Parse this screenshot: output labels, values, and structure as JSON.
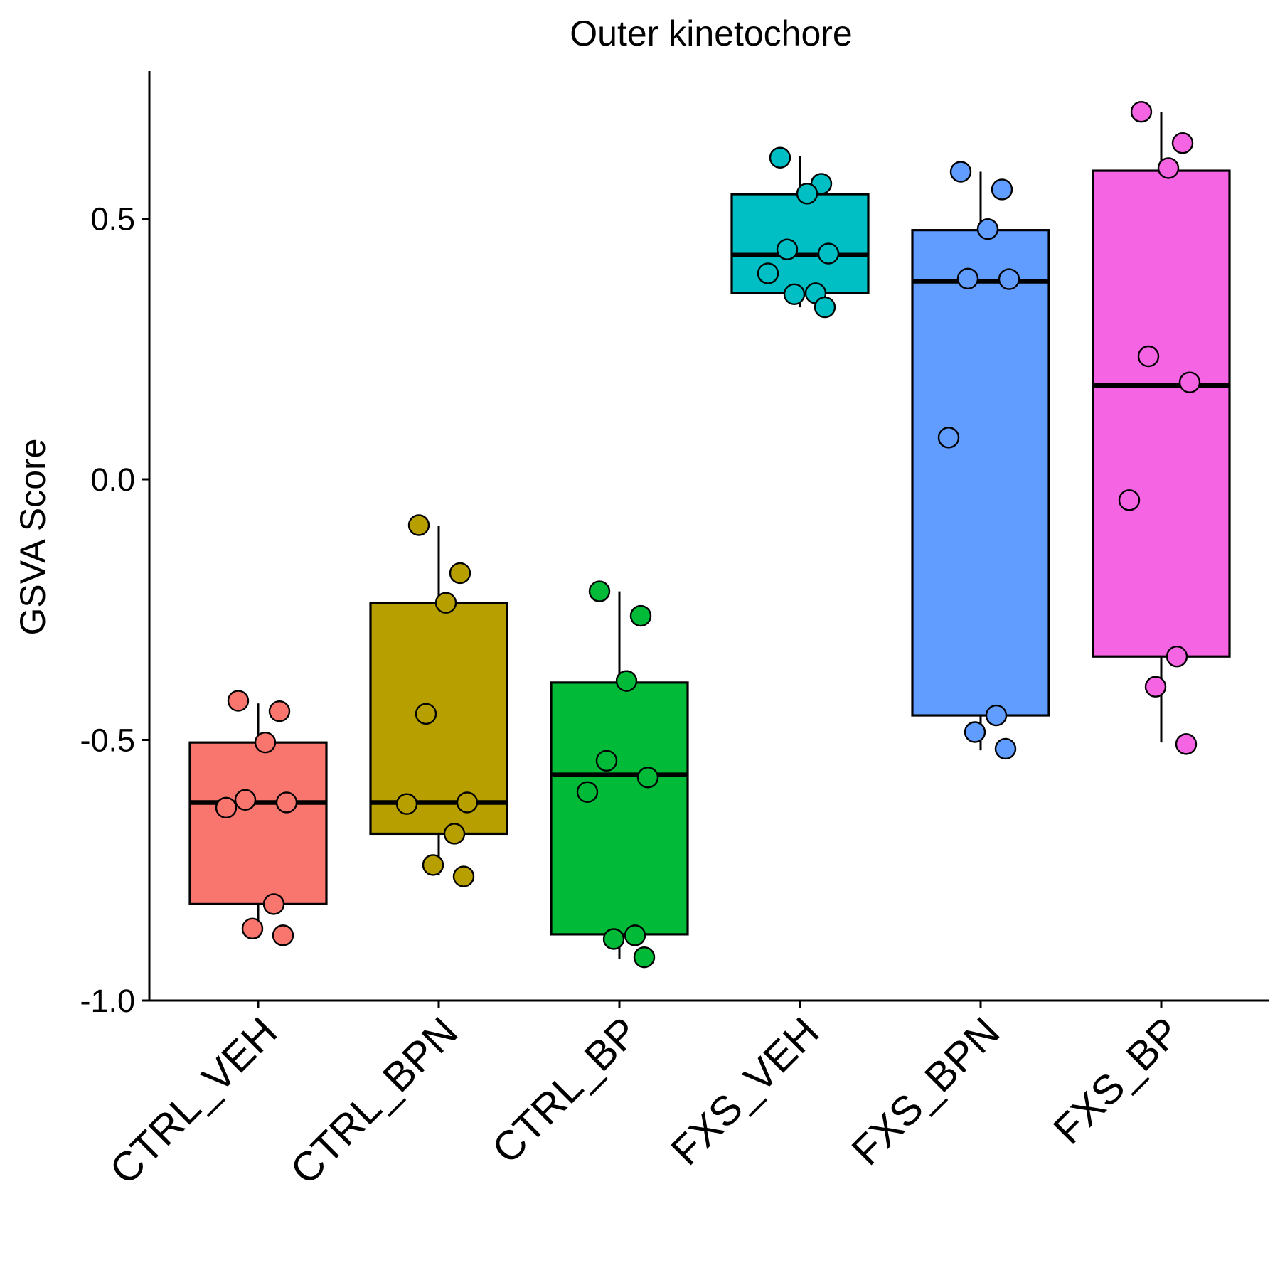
{
  "chart_data": {
    "type": "box",
    "title": "Outer kinetochore",
    "xlabel": "",
    "ylabel": "GSVA Score",
    "ylim": [
      -1.0,
      0.78
    ],
    "yticks": [
      "-1.0",
      "-0.5",
      "0.0",
      "0.5"
    ],
    "ytick_values": [
      -1.0,
      -0.5,
      0.0,
      0.5
    ],
    "legend": "none",
    "grid": false,
    "categories": [
      "CTRL_VEH",
      "CTRL_BPN",
      "CTRL_BP",
      "FXS_VEH",
      "FXS_BPN",
      "FXS_BP"
    ],
    "series": [
      {
        "category": "CTRL_VEH",
        "color": "#F8766D",
        "q1": -0.815,
        "median": -0.62,
        "q3": -0.505,
        "whisker_low": -0.88,
        "whisker_high": -0.43,
        "points": [
          -0.425,
          -0.445,
          -0.505,
          -0.615,
          -0.62,
          -0.63,
          -0.815,
          -0.862,
          -0.875
        ]
      },
      {
        "category": "CTRL_BPN",
        "color": "#B79F00",
        "q1": -0.68,
        "median": -0.62,
        "q3": -0.237,
        "whisker_low": -0.76,
        "whisker_high": -0.09,
        "points": [
          -0.088,
          -0.18,
          -0.237,
          -0.45,
          -0.62,
          -0.623,
          -0.68,
          -0.74,
          -0.762
        ]
      },
      {
        "category": "CTRL_BP",
        "color": "#00BA38",
        "q1": -0.873,
        "median": -0.567,
        "q3": -0.39,
        "whisker_low": -0.92,
        "whisker_high": -0.215,
        "points": [
          -0.215,
          -0.262,
          -0.387,
          -0.54,
          -0.572,
          -0.6,
          -0.875,
          -0.882,
          -0.917
        ]
      },
      {
        "category": "FXS_VEH",
        "color": "#00BFC4",
        "q1": 0.357,
        "median": 0.43,
        "q3": 0.547,
        "whisker_low": 0.33,
        "whisker_high": 0.62,
        "points": [
          0.617,
          0.567,
          0.548,
          0.441,
          0.433,
          0.395,
          0.357,
          0.355,
          0.33
        ]
      },
      {
        "category": "FXS_BPN",
        "color": "#619CFF",
        "q1": -0.453,
        "median": 0.38,
        "q3": 0.478,
        "whisker_low": -0.52,
        "whisker_high": 0.59,
        "points": [
          0.59,
          0.556,
          0.48,
          0.385,
          0.384,
          0.08,
          -0.453,
          -0.485,
          -0.517
        ]
      },
      {
        "category": "FXS_BP",
        "color": "#F564E3",
        "q1": -0.34,
        "median": 0.18,
        "q3": 0.592,
        "whisker_low": -0.505,
        "whisker_high": 0.705,
        "points": [
          0.705,
          0.645,
          0.597,
          0.236,
          0.186,
          -0.04,
          -0.34,
          -0.398,
          -0.508
        ]
      }
    ]
  }
}
